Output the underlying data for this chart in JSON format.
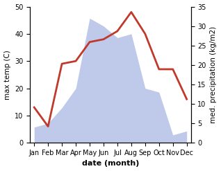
{
  "months": [
    "Jan",
    "Feb",
    "Mar",
    "Apr",
    "May",
    "Jun",
    "Jul",
    "Aug",
    "Sep",
    "Oct",
    "Nov",
    "Dec"
  ],
  "temperature": [
    13,
    6,
    29,
    30,
    37,
    38,
    41,
    48,
    40,
    27,
    27,
    16
  ],
  "precipitation_mm": [
    4,
    5,
    9,
    14,
    32,
    30,
    27,
    28,
    14,
    13,
    2,
    3
  ],
  "temp_color": "#c0392b",
  "precip_fill_color": "#b8c4e8",
  "left_ylim": [
    0,
    50
  ],
  "right_ylim": [
    0,
    35
  ],
  "left_ylabel": "max temp (C)",
  "right_ylabel": "med. precipitation (kg/m2)",
  "xlabel": "date (month)",
  "temp_linewidth": 2.0,
  "xlabel_fontsize": 8,
  "ylabel_fontsize": 7.5,
  "tick_fontsize": 7
}
